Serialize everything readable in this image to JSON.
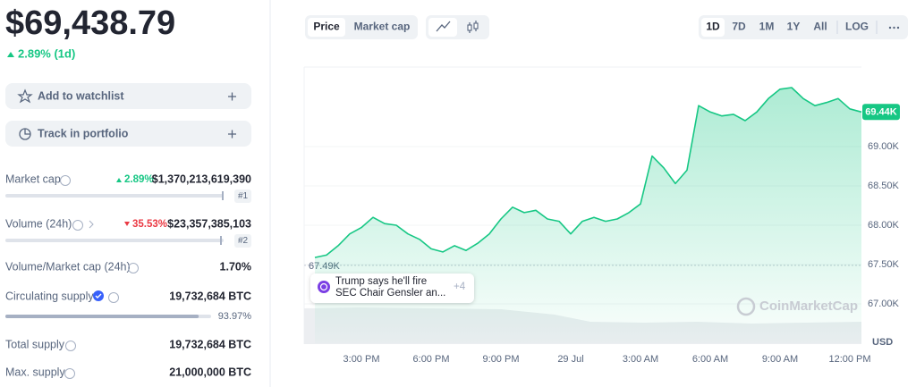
{
  "price": {
    "value": "$69,438.79",
    "change": "2.89% (1d)"
  },
  "actions": [
    "Add to watchlist",
    "Track in portfolio"
  ],
  "stats": [
    {
      "label": "Market cap",
      "change": "2.89%",
      "value": "$1,370,213,619,390",
      "rank": "#1"
    },
    {
      "label": "Volume (24h)",
      "change": "35.53%",
      "value": "$23,357,385,103",
      "rank": "#2"
    },
    {
      "label": "Volume/Market cap (24h)",
      "value": "1.70%"
    },
    {
      "label": "Circulating supply",
      "value": "19,732,684 BTC",
      "percent": "93.97%"
    },
    {
      "label": "Total supply",
      "value": "19,732,684 BTC"
    },
    {
      "label": "Max. supply",
      "value": "21,000,000 BTC"
    }
  ],
  "tabs": {
    "metric": [
      "Price",
      "Market cap"
    ],
    "range": [
      "1D",
      "7D",
      "1M",
      "1Y",
      "All",
      "LOG"
    ]
  },
  "news": {
    "headline": [
      "Trump says he'll fire",
      "SEC Chair Gensler an..."
    ],
    "more": "+4"
  },
  "chart_data": {
    "type": "area",
    "color": "#16c784",
    "categories": [
      null,
      null,
      null,
      null,
      "3:00 PM",
      null,
      null,
      null,
      null,
      null,
      "6:00 PM",
      null,
      null,
      null,
      null,
      null,
      "9:00 PM",
      null,
      null,
      null,
      null,
      null,
      "29 Jul",
      null,
      null,
      null,
      null,
      null,
      "3:00 AM",
      null,
      null,
      null,
      null,
      null,
      "6:00 AM",
      null,
      null,
      null,
      null,
      null,
      "9:00 AM",
      null,
      null,
      null,
      null,
      null,
      "12:00 PM",
      null
    ],
    "values": [
      67590,
      67620,
      67740,
      67890,
      67970,
      68100,
      68020,
      68000,
      67890,
      67820,
      67700,
      67660,
      67740,
      67680,
      67770,
      67890,
      68080,
      68230,
      68160,
      68190,
      68080,
      68050,
      67890,
      68050,
      68100,
      68050,
      68080,
      68160,
      68270,
      68880,
      68730,
      68530,
      68700,
      69520,
      69440,
      69390,
      69410,
      69330,
      69440,
      69610,
      69730,
      69750,
      69610,
      69520,
      69560,
      69610,
      69480,
      69440
    ],
    "ylim": [
      66500,
      70000
    ],
    "yticks": [
      {
        "value": 67000,
        "label": "67.00K"
      },
      {
        "value": 67500,
        "label": "67.50K"
      },
      {
        "value": 68000,
        "label": "68.00K"
      },
      {
        "value": 68500,
        "label": "68.50K"
      },
      {
        "value": 69000,
        "label": "69.00K"
      }
    ],
    "y_unit": "USD",
    "open_line": {
      "value": 67490,
      "label": "67.49K"
    },
    "last_price_tag": "69.44K",
    "watermark": "CoinMarketCap",
    "grid": true
  }
}
